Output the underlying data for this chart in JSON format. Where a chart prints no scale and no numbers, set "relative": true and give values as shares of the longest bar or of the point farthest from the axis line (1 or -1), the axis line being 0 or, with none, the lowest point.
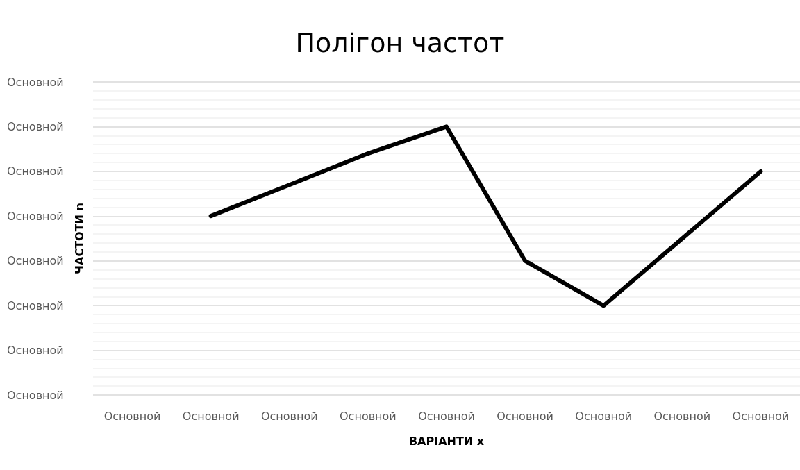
{
  "chart_data": {
    "type": "line",
    "title": "Полігон частот",
    "xlabel": "ВАРІАНТИ x",
    "ylabel": "ЧАСТОТИ n",
    "categories": [
      "Основной",
      "Основной",
      "Основной",
      "Основной",
      "Основной",
      "Основной",
      "Основной",
      "Основной",
      "Основной"
    ],
    "series": [
      {
        "color": "#000000",
        "values": [
          null,
          0.667,
          0.783,
          0.9,
          1,
          0.5,
          0.333,
          0.583,
          0.833
        ]
      }
    ],
    "relative": true,
    "annotations": [
      "Основной",
      "Основной",
      "Основной",
      "Основной",
      "Основной",
      "Основной",
      "Основной",
      "Основной"
    ],
    "grid": "y",
    "marker": "none",
    "line_style": "solid"
  }
}
